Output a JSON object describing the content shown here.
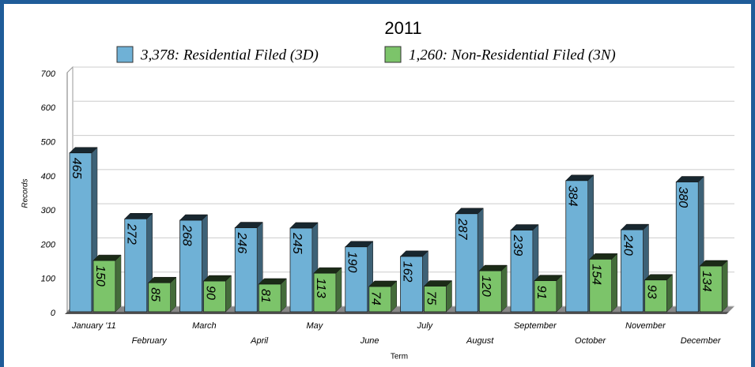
{
  "chart_data": {
    "type": "bar3d",
    "title": "2011",
    "x_label": "Term",
    "y_label": "Records",
    "categories": [
      "January '11",
      "February",
      "March",
      "April",
      "May",
      "June",
      "July",
      "August",
      "September",
      "October",
      "November",
      "December"
    ],
    "series": [
      {
        "name": "3,378: Residential Filed (3D)",
        "color": "#6fb1d6",
        "values": [
          465,
          272,
          268,
          246,
          245,
          190,
          162,
          287,
          239,
          384,
          240,
          380
        ]
      },
      {
        "name": "1,260: Non-Residential Filed (3N)",
        "color": "#7cc46a",
        "values": [
          150,
          85,
          90,
          81,
          113,
          74,
          75,
          120,
          91,
          154,
          93,
          134
        ]
      }
    ],
    "ylim": [
      0,
      700
    ],
    "yticks": [
      0,
      100,
      200,
      300,
      400,
      500,
      600,
      700
    ],
    "grid": true
  }
}
